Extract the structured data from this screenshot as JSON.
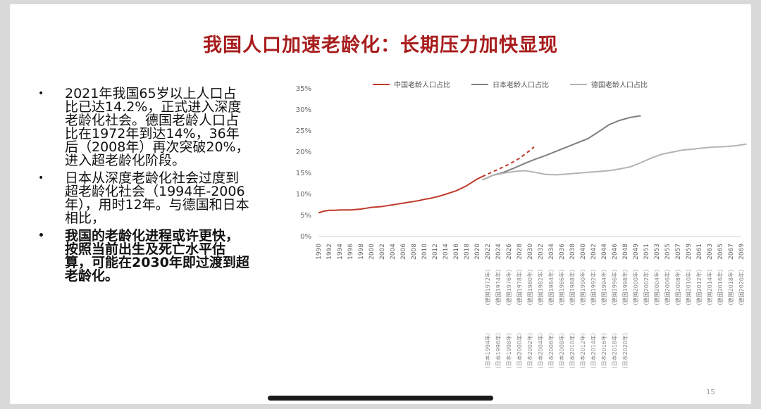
{
  "title": "我国人口加速老龄化：长期压力加快显现",
  "bullets": [
    {
      "text": "2021年我国65岁以上人口占比已达14.2%，正式进入深度老龄化社会。德国老龄人口占比在1972年到达14%，36年后（2008年）再次突破20%，进入超老龄化阶段。",
      "bold": false
    },
    {
      "text": "日本从深度老龄化社会过度到超老龄化社会（1994年-2006年），用时12年。与德国和日本相比，",
      "bold": false
    },
    {
      "text": "我国的老龄化进程或许更快，按照当前出生及死亡水平估算，可能在2030年即过渡到超老龄化。",
      "bold": true
    }
  ],
  "bullet_symbol": "•",
  "page_number": "15",
  "chart_data": {
    "type": "line",
    "ylim": [
      0,
      0.35
    ],
    "yticks": [
      "0%",
      "5%",
      "10%",
      "15%",
      "20%",
      "25%",
      "30%",
      "35%"
    ],
    "grid": false,
    "legend_position": "top",
    "x_labels": [
      "1990",
      "1992",
      "1994",
      "1996",
      "1998",
      "2000",
      "2002",
      "2004",
      "2006",
      "2008",
      "2010",
      "2012",
      "2014",
      "2016",
      "2018",
      "2020",
      "2022",
      "2024",
      "2026",
      "2028",
      "2030",
      "2032",
      "2034",
      "2036",
      "2038",
      "2040",
      "2042",
      "2044",
      "2046",
      "2048",
      "2049",
      "2051",
      "2053",
      "2055",
      "2057",
      "2059",
      "2061",
      "2063",
      "2065",
      "2067",
      "2069"
    ],
    "x_sub_labels": [
      "",
      "",
      "",
      "",
      "",
      "",
      "",
      "",
      "",
      "",
      "",
      "",
      "",
      "",
      "",
      "",
      "（德国1972年）",
      "（德国1974年）",
      "（德国1976年）",
      "（德国1978年）",
      "（德国1980年）",
      "（德国1982年）",
      "（德国1984年）",
      "（德国1986年）",
      "（德国1988年）",
      "（德国1990年）",
      "（德国1992年）",
      "（德国1994年）",
      "（德国1996年）",
      "（德国1998年）",
      "（德国2000年）",
      "（德国2002年）",
      "（德国2004年）",
      "（德国2006年）",
      "（德国2008年）",
      "（德国2010年）",
      "（德国2012年）",
      "（德国2014年）",
      "（德国2016年）",
      "（德国2018年）",
      "（德国2020年）"
    ],
    "x_sub_labels2": [
      "",
      "",
      "",
      "",
      "",
      "",
      "",
      "",
      "",
      "",
      "",
      "",
      "",
      "",
      "",
      "",
      "（日本1994年）",
      "（日本1996年）",
      "（日本1998年）",
      "（日本2000年）",
      "（日本2002年）",
      "（日本2004年）",
      "（日本2006年）",
      "（日本2008年）",
      "（日本2010年）",
      "（日本2012年）",
      "（日本2014年）",
      "（日本2016年）",
      "（日本2018年）",
      "（日本2020年）",
      "",
      "",
      "",
      "",
      "",
      "",
      "",
      "",
      "",
      "",
      ""
    ],
    "series": [
      {
        "name": "中国老龄人口占比",
        "color": "#c0392b",
        "x_start_index": 0,
        "step": 0.5,
        "values": [
          0.056,
          0.06,
          0.062,
          0.062,
          0.063,
          0.063,
          0.063,
          0.064,
          0.065,
          0.067,
          0.069,
          0.07,
          0.071,
          0.073,
          0.075,
          0.077,
          0.079,
          0.081,
          0.083,
          0.085,
          0.088,
          0.09,
          0.093,
          0.096,
          0.1,
          0.104,
          0.108,
          0.114,
          0.12,
          0.128,
          0.136,
          0.142
        ],
        "dashed_from_index": 31,
        "dashed_values": [
          0.142,
          0.15,
          0.158,
          0.166,
          0.175,
          0.185,
          0.198,
          0.212
        ]
      },
      {
        "name": "日本老龄人口占比",
        "color": "#7f7f7f",
        "x_start_index": 15.5,
        "step": 1,
        "values": [
          0.134,
          0.145,
          0.152,
          0.162,
          0.173,
          0.183,
          0.192,
          0.202,
          0.212,
          0.222,
          0.232,
          0.248,
          0.265,
          0.275,
          0.282,
          0.286
        ]
      },
      {
        "name": "德国老龄人口占比",
        "color": "#b3b3b3",
        "x_start_index": 15.5,
        "step": 1,
        "values": [
          0.134,
          0.145,
          0.15,
          0.154,
          0.156,
          0.152,
          0.147,
          0.146,
          0.148,
          0.15,
          0.152,
          0.154,
          0.156,
          0.16,
          0.165,
          0.175,
          0.186,
          0.195,
          0.2,
          0.205,
          0.207,
          0.21,
          0.212,
          0.213,
          0.215,
          0.219
        ]
      }
    ]
  }
}
